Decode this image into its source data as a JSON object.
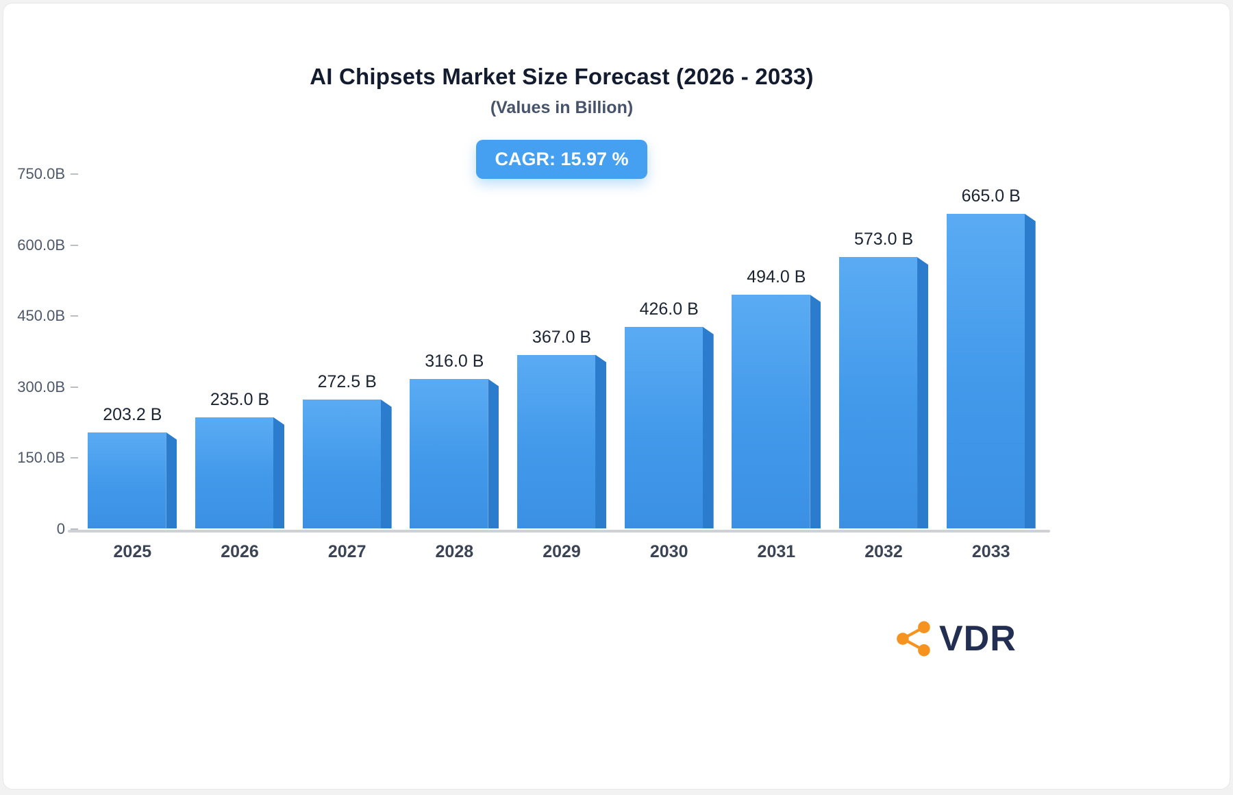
{
  "title": "AI Chipsets Market Size Forecast (2026 - 2033)",
  "subtitle": "(Values in Billion)",
  "badge": {
    "label": "CAGR: 15.97 %"
  },
  "chart_data": {
    "type": "bar",
    "title": "AI Chipsets Market Size Forecast (2026 - 2033)",
    "subtitle": "(Values in Billion)",
    "xlabel": "",
    "ylabel": "",
    "categories": [
      "2025",
      "2026",
      "2027",
      "2028",
      "2029",
      "2030",
      "2031",
      "2032",
      "2033"
    ],
    "values": [
      203.2,
      235.0,
      272.5,
      316.0,
      367.0,
      426.0,
      494.0,
      573.0,
      665.0
    ],
    "value_labels": [
      "203.2 B",
      "235.0 B",
      "272.5 B",
      "316.0 B",
      "367.0 B",
      "426.0 B",
      "494.0 B",
      "573.0 B",
      "665.0 B"
    ],
    "ylim": [
      0,
      750
    ],
    "y_ticks": [
      {
        "value": 750,
        "label": "750.0B"
      },
      {
        "value": 600,
        "label": "600.0B"
      },
      {
        "value": 450,
        "label": "450.0B"
      },
      {
        "value": 300,
        "label": "300.0B"
      },
      {
        "value": 150,
        "label": "150.0B"
      },
      {
        "value": 0,
        "label": "0"
      }
    ],
    "grid": false,
    "legend": null,
    "annotation": "CAGR: 15.97 %",
    "bar_color_main": "#4299ea",
    "bar_color_side": "#2b7ccd"
  },
  "logo": {
    "text": "VDR",
    "icon": "network-icon",
    "icon_color": "#f6921e",
    "text_color": "#232f52"
  }
}
